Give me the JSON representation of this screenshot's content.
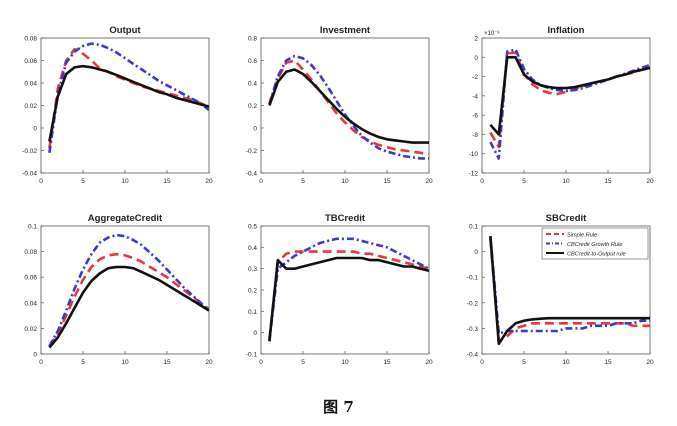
{
  "figure": {
    "caption": "图 7"
  },
  "series_styles": [
    {
      "name": "Simple Rule",
      "color": "#e8383d",
      "dash": "9,5",
      "width": 2.6
    },
    {
      "name": "CBCredit Growth Rule",
      "color": "#3b3bbf",
      "dash": "7,3,2,3",
      "width": 2.6
    },
    {
      "name": "CBCredit-to-Output rule",
      "color": "#111111",
      "dash": "",
      "width": 2.6
    }
  ],
  "chart_data": [
    {
      "type": "line",
      "title": "Output",
      "x": [
        1,
        2,
        3,
        4,
        5,
        6,
        7,
        8,
        9,
        10,
        11,
        12,
        13,
        14,
        15,
        16,
        17,
        18,
        19,
        20
      ],
      "xlim": [
        0,
        20
      ],
      "xticks": [
        "0",
        "5",
        "10",
        "15",
        "20"
      ],
      "ylim": [
        -0.04,
        0.08
      ],
      "yticks": [
        {
          "value": -0.04,
          "label": "-0.04"
        },
        {
          "value": -0.02,
          "label": "-0.02"
        },
        {
          "value": 0,
          "label": "0"
        },
        {
          "value": 0.02,
          "label": "0.02"
        },
        {
          "value": 0.04,
          "label": "0.04"
        },
        {
          "value": 0.06,
          "label": "0.06"
        },
        {
          "value": 0.08,
          "label": "0.08"
        }
      ],
      "series": [
        {
          "values": [
            -0.018,
            0.035,
            0.06,
            0.07,
            0.066,
            0.06,
            0.053,
            0.05,
            0.046,
            0.043,
            0.04,
            0.037,
            0.035,
            0.033,
            0.031,
            0.029,
            0.027,
            0.025,
            0.022,
            0.019
          ]
        },
        {
          "values": [
            -0.022,
            0.03,
            0.058,
            0.068,
            0.073,
            0.075,
            0.074,
            0.071,
            0.067,
            0.062,
            0.057,
            0.052,
            0.047,
            0.042,
            0.038,
            0.034,
            0.03,
            0.026,
            0.022,
            0.016
          ]
        },
        {
          "values": [
            -0.012,
            0.028,
            0.048,
            0.054,
            0.055,
            0.054,
            0.052,
            0.05,
            0.047,
            0.044,
            0.041,
            0.038,
            0.035,
            0.032,
            0.03,
            0.027,
            0.025,
            0.023,
            0.021,
            0.019
          ]
        }
      ]
    },
    {
      "type": "line",
      "title": "Investment",
      "x": [
        1,
        2,
        3,
        4,
        5,
        6,
        7,
        8,
        9,
        10,
        11,
        12,
        13,
        14,
        15,
        16,
        17,
        18,
        19,
        20
      ],
      "xlim": [
        0,
        20
      ],
      "xticks": [
        "0",
        "5",
        "10",
        "15",
        "20"
      ],
      "ylim": [
        -0.4,
        0.8
      ],
      "yticks": [
        {
          "value": -0.4,
          "label": "-0.4"
        },
        {
          "value": -0.2,
          "label": "-0.2"
        },
        {
          "value": 0,
          "label": "0"
        },
        {
          "value": 0.2,
          "label": "0.2"
        },
        {
          "value": 0.4,
          "label": "0.4"
        },
        {
          "value": 0.6,
          "label": "0.6"
        },
        {
          "value": 0.8,
          "label": "0.8"
        }
      ],
      "series": [
        {
          "values": [
            0.22,
            0.44,
            0.58,
            0.6,
            0.52,
            0.43,
            0.33,
            0.23,
            0.13,
            0.05,
            -0.02,
            -0.08,
            -0.12,
            -0.15,
            -0.17,
            -0.19,
            -0.2,
            -0.21,
            -0.22,
            -0.23
          ]
        },
        {
          "values": [
            0.21,
            0.46,
            0.6,
            0.64,
            0.62,
            0.56,
            0.47,
            0.36,
            0.24,
            0.12,
            0.02,
            -0.07,
            -0.13,
            -0.18,
            -0.21,
            -0.23,
            -0.25,
            -0.26,
            -0.27,
            -0.27
          ]
        },
        {
          "values": [
            0.2,
            0.41,
            0.5,
            0.52,
            0.48,
            0.41,
            0.33,
            0.25,
            0.17,
            0.1,
            0.04,
            -0.01,
            -0.05,
            -0.08,
            -0.1,
            -0.11,
            -0.12,
            -0.13,
            -0.13,
            -0.13
          ]
        }
      ]
    },
    {
      "type": "line",
      "title": "Inflation",
      "axis_multiplier": "×10⁻³",
      "x": [
        1,
        2,
        3,
        4,
        5,
        6,
        7,
        8,
        9,
        10,
        11,
        12,
        13,
        14,
        15,
        16,
        17,
        18,
        19,
        20
      ],
      "xlim": [
        0,
        20
      ],
      "xticks": [
        "0",
        "5",
        "10",
        "15",
        "20"
      ],
      "ylim": [
        -12,
        2
      ],
      "yticks": [
        {
          "value": -12,
          "label": "-12"
        },
        {
          "value": -10,
          "label": "-10"
        },
        {
          "value": -8,
          "label": "-8"
        },
        {
          "value": -6,
          "label": "-6"
        },
        {
          "value": -4,
          "label": "-4"
        },
        {
          "value": -2,
          "label": "-2"
        },
        {
          "value": 0,
          "label": "0"
        },
        {
          "value": 2,
          "label": "2"
        }
      ],
      "series": [
        {
          "values": [
            -7.8,
            -9.3,
            0.4,
            0.5,
            -1.7,
            -2.8,
            -3.4,
            -3.7,
            -3.8,
            -3.6,
            -3.3,
            -3.0,
            -2.8,
            -2.5,
            -2.3,
            -2.0,
            -1.8,
            -1.6,
            -1.3,
            -1.1
          ]
        },
        {
          "values": [
            -8.8,
            -10.5,
            0.6,
            0.8,
            -1.2,
            -2.3,
            -2.9,
            -3.2,
            -3.4,
            -3.5,
            -3.4,
            -3.2,
            -2.9,
            -2.6,
            -2.3,
            -2.0,
            -1.7,
            -1.4,
            -1.1,
            -0.8
          ]
        },
        {
          "values": [
            -7.0,
            -8.0,
            0.0,
            0.0,
            -1.8,
            -2.5,
            -2.9,
            -3.1,
            -3.2,
            -3.2,
            -3.1,
            -2.9,
            -2.7,
            -2.5,
            -2.3,
            -2.0,
            -1.8,
            -1.5,
            -1.3,
            -1.1
          ]
        }
      ]
    },
    {
      "type": "line",
      "title": "AggregateCredit",
      "x": [
        1,
        2,
        3,
        4,
        5,
        6,
        7,
        8,
        9,
        10,
        11,
        12,
        13,
        14,
        15,
        16,
        17,
        18,
        19,
        20
      ],
      "xlim": [
        0,
        20
      ],
      "xticks": [
        "0",
        "5",
        "10",
        "15",
        "20"
      ],
      "ylim": [
        0,
        0.1
      ],
      "yticks": [
        {
          "value": 0,
          "label": "0"
        },
        {
          "value": 0.02,
          "label": "0.02"
        },
        {
          "value": 0.04,
          "label": "0.04"
        },
        {
          "value": 0.06,
          "label": "0.06"
        },
        {
          "value": 0.08,
          "label": "0.08"
        },
        {
          "value": 0.1,
          "label": "0.1"
        }
      ],
      "series": [
        {
          "values": [
            0.006,
            0.016,
            0.03,
            0.045,
            0.058,
            0.068,
            0.074,
            0.077,
            0.078,
            0.077,
            0.075,
            0.072,
            0.068,
            0.064,
            0.06,
            0.055,
            0.05,
            0.045,
            0.04,
            0.035
          ]
        },
        {
          "values": [
            0.006,
            0.018,
            0.034,
            0.051,
            0.066,
            0.078,
            0.087,
            0.091,
            0.093,
            0.092,
            0.089,
            0.085,
            0.079,
            0.073,
            0.066,
            0.059,
            0.052,
            0.046,
            0.04,
            0.034
          ]
        },
        {
          "values": [
            0.005,
            0.013,
            0.024,
            0.036,
            0.048,
            0.057,
            0.063,
            0.067,
            0.068,
            0.068,
            0.067,
            0.064,
            0.061,
            0.058,
            0.054,
            0.05,
            0.046,
            0.042,
            0.038,
            0.034
          ]
        }
      ]
    },
    {
      "type": "line",
      "title": "TBCredit",
      "x": [
        1,
        2,
        3,
        4,
        5,
        6,
        7,
        8,
        9,
        10,
        11,
        12,
        13,
        14,
        15,
        16,
        17,
        18,
        19,
        20
      ],
      "xlim": [
        0,
        20
      ],
      "xticks": [
        "0",
        "5",
        "10",
        "15",
        "20"
      ],
      "ylim": [
        -0.1,
        0.5
      ],
      "yticks": [
        {
          "value": -0.1,
          "label": "-0.1"
        },
        {
          "value": 0,
          "label": "0"
        },
        {
          "value": 0.1,
          "label": "0.1"
        },
        {
          "value": 0.2,
          "label": "0.2"
        },
        {
          "value": 0.3,
          "label": "0.3"
        },
        {
          "value": 0.4,
          "label": "0.4"
        },
        {
          "value": 0.5,
          "label": "0.5"
        }
      ],
      "series": [
        {
          "values": [
            -0.03,
            0.33,
            0.37,
            0.38,
            0.38,
            0.38,
            0.38,
            0.38,
            0.38,
            0.38,
            0.38,
            0.37,
            0.37,
            0.36,
            0.35,
            0.34,
            0.33,
            0.32,
            0.31,
            0.3
          ]
        },
        {
          "values": [
            -0.04,
            0.3,
            0.33,
            0.36,
            0.38,
            0.4,
            0.42,
            0.43,
            0.44,
            0.44,
            0.44,
            0.43,
            0.42,
            0.41,
            0.4,
            0.38,
            0.36,
            0.34,
            0.32,
            0.3
          ]
        },
        {
          "values": [
            -0.04,
            0.34,
            0.3,
            0.3,
            0.31,
            0.32,
            0.33,
            0.34,
            0.35,
            0.35,
            0.35,
            0.35,
            0.34,
            0.34,
            0.33,
            0.32,
            0.31,
            0.31,
            0.3,
            0.29
          ]
        }
      ]
    },
    {
      "type": "line",
      "title": "SBCredit",
      "x": [
        1,
        2,
        3,
        4,
        5,
        6,
        7,
        8,
        9,
        10,
        11,
        12,
        13,
        14,
        15,
        16,
        17,
        18,
        19,
        20
      ],
      "xlim": [
        0,
        20
      ],
      "xticks": [
        "0",
        "5",
        "10",
        "15",
        "20"
      ],
      "ylim": [
        -0.4,
        0.1
      ],
      "yticks": [
        {
          "value": -0.4,
          "label": "-0.4"
        },
        {
          "value": -0.3,
          "label": "-0.3"
        },
        {
          "value": -0.2,
          "label": "-0.2"
        },
        {
          "value": -0.1,
          "label": "-0.1"
        },
        {
          "value": 0,
          "label": "0"
        },
        {
          "value": 0.1,
          "label": "0.1"
        }
      ],
      "legend": {
        "position": "top-right",
        "entries": [
          "Simple Rule",
          "CBCredit Growth Rule",
          "CBCredit-to-Output rule"
        ]
      },
      "series": [
        {
          "values": [
            0.05,
            -0.35,
            -0.33,
            -0.3,
            -0.29,
            -0.28,
            -0.28,
            -0.28,
            -0.28,
            -0.28,
            -0.28,
            -0.28,
            -0.28,
            -0.28,
            -0.28,
            -0.28,
            -0.28,
            -0.29,
            -0.29,
            -0.29
          ]
        },
        {
          "values": [
            0.06,
            -0.32,
            -0.31,
            -0.31,
            -0.31,
            -0.31,
            -0.31,
            -0.31,
            -0.31,
            -0.3,
            -0.3,
            -0.3,
            -0.29,
            -0.29,
            -0.29,
            -0.28,
            -0.28,
            -0.28,
            -0.27,
            -0.27
          ]
        },
        {
          "values": [
            0.06,
            -0.36,
            -0.31,
            -0.28,
            -0.27,
            -0.265,
            -0.262,
            -0.26,
            -0.26,
            -0.26,
            -0.26,
            -0.26,
            -0.26,
            -0.26,
            -0.26,
            -0.26,
            -0.26,
            -0.26,
            -0.26,
            -0.26
          ]
        }
      ]
    }
  ]
}
